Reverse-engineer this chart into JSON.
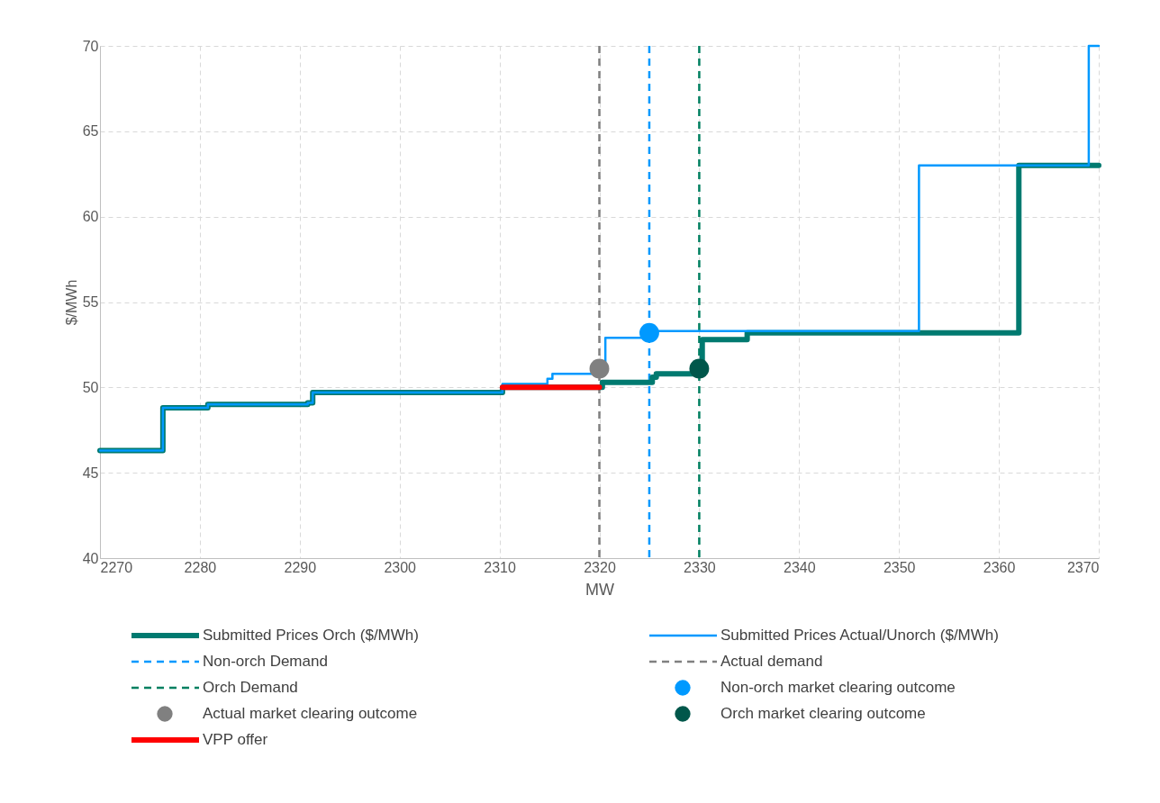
{
  "chart_data": {
    "type": "step",
    "xlabel": "MW",
    "ylabel": "$/MWh",
    "xlim": [
      2270,
      2370
    ],
    "xticks": [
      2270,
      2280,
      2290,
      2300,
      2310,
      2320,
      2330,
      2340,
      2350,
      2360,
      2370
    ],
    "ylim": [
      40,
      70
    ],
    "yticks": [
      40,
      45,
      50,
      55,
      60,
      65,
      70
    ],
    "grid": true,
    "legend": "bottom",
    "line_style": "solid",
    "series": [
      {
        "name": "Submitted Prices Orch ($/MWh)",
        "color": "#007a70",
        "x": [
          2270,
          2276.3,
          2280.8,
          2290.8,
          2291.3,
          2310.3,
          2320.3,
          2325.3,
          2325.7,
          2330.3,
          2334.8,
          2362,
          2370
        ],
        "values": [
          46.3,
          48.8,
          49.0,
          49.1,
          49.7,
          50.0,
          50.3,
          50.6,
          50.8,
          52.8,
          53.2,
          63.0,
          63.0
        ]
      },
      {
        "name": "Submitted Prices Actual/Unorch ($/MWh)",
        "color": "#0099ff",
        "x": [
          2270,
          2276.3,
          2280.8,
          2290.8,
          2291.3,
          2310.3,
          2314.8,
          2315.3,
          2320.6,
          2325,
          2352,
          2369,
          2370
        ],
        "values": [
          46.3,
          48.8,
          49.0,
          49.1,
          49.7,
          50.2,
          50.5,
          50.8,
          52.9,
          53.3,
          63.0,
          70.0,
          70.0
        ]
      },
      {
        "name": "Non-orch market clearing outcome",
        "color": "#0099ff",
        "type": "scatter",
        "marker": "circle",
        "x": [
          2325
        ],
        "values": [
          53.2
        ]
      },
      {
        "name": "Actual market clearing outcome",
        "color": "#808080",
        "type": "scatter",
        "marker": "circle",
        "x": [
          2320
        ],
        "values": [
          51.1
        ]
      },
      {
        "name": "Orch market clearing outcome",
        "color": "#00574b",
        "type": "scatter",
        "marker": "circle",
        "x": [
          2330
        ],
        "values": [
          51.1
        ]
      },
      {
        "name": "VPP offer",
        "color": "#ff0000",
        "x": [
          2310.3,
          2320
        ],
        "values": [
          50.0,
          50.0
        ]
      }
    ],
    "ref_lines": [
      {
        "axis": "x",
        "value": 2325,
        "label": "Non-orch Demand",
        "color": "#0099ff",
        "line_style": "dashed"
      },
      {
        "axis": "x",
        "value": 2320,
        "label": "Actual demand",
        "color": "#808080",
        "line_style": "dashed"
      },
      {
        "axis": "x",
        "value": 2330,
        "label": "Orch Demand",
        "color": "#008060",
        "line_style": "dashed"
      }
    ]
  }
}
